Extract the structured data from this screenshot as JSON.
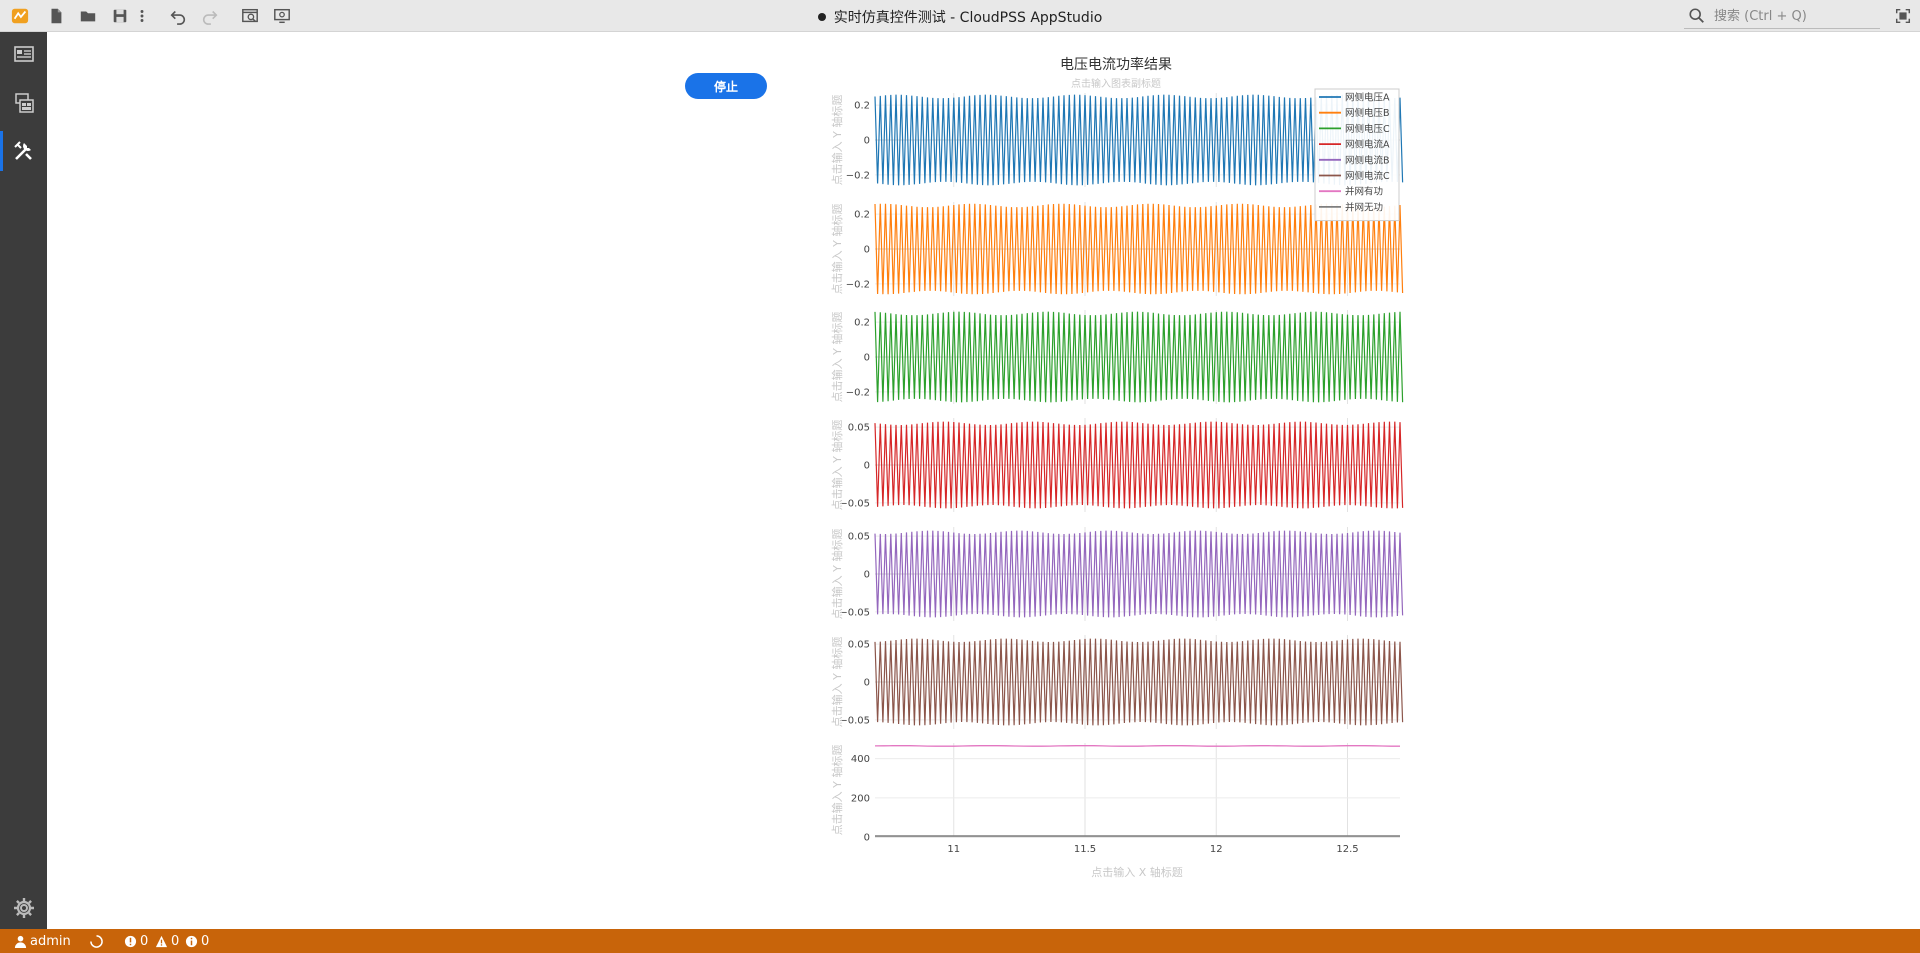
{
  "window": {
    "title": "实时仿真控件测试 - CloudPSS AppStudio",
    "search_placeholder": "搜索 (Ctrl + Q)"
  },
  "toolbar": {
    "icons": [
      "app-logo-icon",
      "new-file-icon",
      "open-folder-icon",
      "save-icon",
      "more-vertical-icon",
      "undo-icon",
      "redo-icon",
      "preview-icon",
      "debug-icon"
    ]
  },
  "sidebar": {
    "items": [
      {
        "icon": "layout-icon",
        "active": false
      },
      {
        "icon": "components-icon",
        "active": false
      },
      {
        "icon": "tools-icon",
        "active": true
      }
    ],
    "bottom_icon": "gear-icon"
  },
  "controls": {
    "stop_label": "停止"
  },
  "status": {
    "user": "admin",
    "errors": "0",
    "warnings": "0",
    "infos": "0"
  },
  "colors": {
    "accent": "#1a73e8",
    "statusbar": "#c8640a",
    "sidebar": "#3c3c3c"
  },
  "chart_data": {
    "type": "line",
    "title": "电压电流功率结果",
    "subtitle_hint": "点击输入图表副标题",
    "xlabel": "点击输入 X 轴标题",
    "ylabel": "点击输入 Y 轴标题",
    "xlim": [
      10.7,
      12.7
    ],
    "xticks": [
      11,
      11.5,
      12,
      12.5
    ],
    "xtick_labels": [
      "11",
      "11.5",
      "12",
      "12.5"
    ],
    "legend_position": "top-right",
    "subplots": [
      {
        "series": "网侧电压A",
        "color": "#1f77b4",
        "ylim": [
          -0.27,
          0.27
        ],
        "yticks": [
          0.2,
          0,
          -0.2
        ],
        "ytick_labels": [
          "0.2",
          "0",
          "−0.2"
        ],
        "amplitude": 0.25,
        "cycles": 100
      },
      {
        "series": "网侧电压B",
        "color": "#ff7f0e",
        "ylim": [
          -0.27,
          0.27
        ],
        "yticks": [
          0.2,
          0,
          -0.2
        ],
        "ytick_labels": [
          "0.2",
          "0",
          "−0.2"
        ],
        "amplitude": 0.25,
        "cycles": 100
      },
      {
        "series": "网侧电压C",
        "color": "#2ca02c",
        "ylim": [
          -0.27,
          0.27
        ],
        "yticks": [
          0.2,
          0,
          -0.2
        ],
        "ytick_labels": [
          "0.2",
          "0",
          "−0.2"
        ],
        "amplitude": 0.25,
        "cycles": 100
      },
      {
        "series": "网侧电流A",
        "color": "#d62728",
        "ylim": [
          -0.062,
          0.062
        ],
        "yticks": [
          0.05,
          0,
          -0.05
        ],
        "ytick_labels": [
          "0.05",
          "0",
          "−0.05"
        ],
        "amplitude": 0.055,
        "cycles": 100
      },
      {
        "series": "网侧电流B",
        "color": "#9467bd",
        "ylim": [
          -0.062,
          0.062
        ],
        "yticks": [
          0.05,
          0,
          -0.05
        ],
        "ytick_labels": [
          "0.05",
          "0",
          "−0.05"
        ],
        "amplitude": 0.055,
        "cycles": 100
      },
      {
        "series": "网侧电流C",
        "color": "#8c564b",
        "ylim": [
          -0.062,
          0.062
        ],
        "yticks": [
          0.05,
          0,
          -0.05
        ],
        "ytick_labels": [
          "0.05",
          "0",
          "−0.05"
        ],
        "amplitude": 0.055,
        "cycles": 100
      },
      {
        "series": "并网有功,并网无功",
        "color": "#e377c2",
        "ylim": [
          0,
          480
        ],
        "yticks": [
          400,
          200,
          0
        ],
        "ytick_labels": [
          "400",
          "200",
          "0"
        ],
        "active_power": 465,
        "reactive_power": 5
      }
    ],
    "legend": [
      {
        "name": "网侧电压A",
        "color": "#1f77b4"
      },
      {
        "name": "网侧电压B",
        "color": "#ff7f0e"
      },
      {
        "name": "网侧电压C",
        "color": "#2ca02c"
      },
      {
        "name": "网侧电流A",
        "color": "#d62728"
      },
      {
        "name": "网侧电流B",
        "color": "#9467bd"
      },
      {
        "name": "网侧电流C",
        "color": "#8c564b"
      },
      {
        "name": "并网有功",
        "color": "#e377c2"
      },
      {
        "name": "并网无功",
        "color": "#7f7f7f"
      }
    ]
  }
}
